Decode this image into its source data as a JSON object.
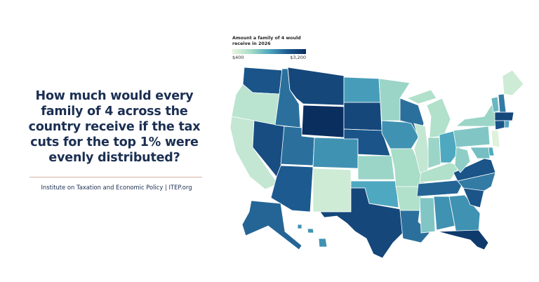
{
  "title": "How much would every family of 4 across the country receive if the tax cuts for the top 1% were evenly distributed?",
  "source": "Institute on Taxation and Economic Policy | ITEP.org",
  "legend": {
    "title": "Amount a family of 4 would receive in 2026",
    "min_label": "$400",
    "max_label": "$3,200",
    "min": 400,
    "max": 3200,
    "colors": [
      "#e8f5df",
      "#a8ddc8",
      "#4ea8c0",
      "#1d5a8f",
      "#0a2e5e"
    ]
  },
  "states": {
    "WA": 2600,
    "OR": 900,
    "CA": 800,
    "NV": 2700,
    "ID": 2300,
    "MT": 2800,
    "WY": 3200,
    "UT": 2300,
    "AZ": 2500,
    "CO": 2000,
    "NM": 700,
    "ND": 1900,
    "SD": 2800,
    "NE": 2600,
    "KS": 1200,
    "OK": 1800,
    "TX": 2800,
    "MN": 1200,
    "IA": 2000,
    "MO": 1100,
    "AR": 1000,
    "LA": 2300,
    "WI": 2300,
    "IL": 800,
    "MI": 1000,
    "IN": 1200,
    "OH": 1800,
    "KY": 1000,
    "TN": 2400,
    "MS": 1400,
    "AL": 2000,
    "GA": 2000,
    "FL": 3000,
    "SC": 2600,
    "NC": 2200,
    "VA": 2600,
    "WV": 1300,
    "PA": 1400,
    "NY": 1200,
    "VT": 1600,
    "NH": 2200,
    "ME": 700,
    "MA": 2800,
    "CT": 2600,
    "RI": 1800,
    "NJ": 500,
    "DE": 1800,
    "MD": 1500,
    "AK": 2400,
    "HI": 2000
  }
}
